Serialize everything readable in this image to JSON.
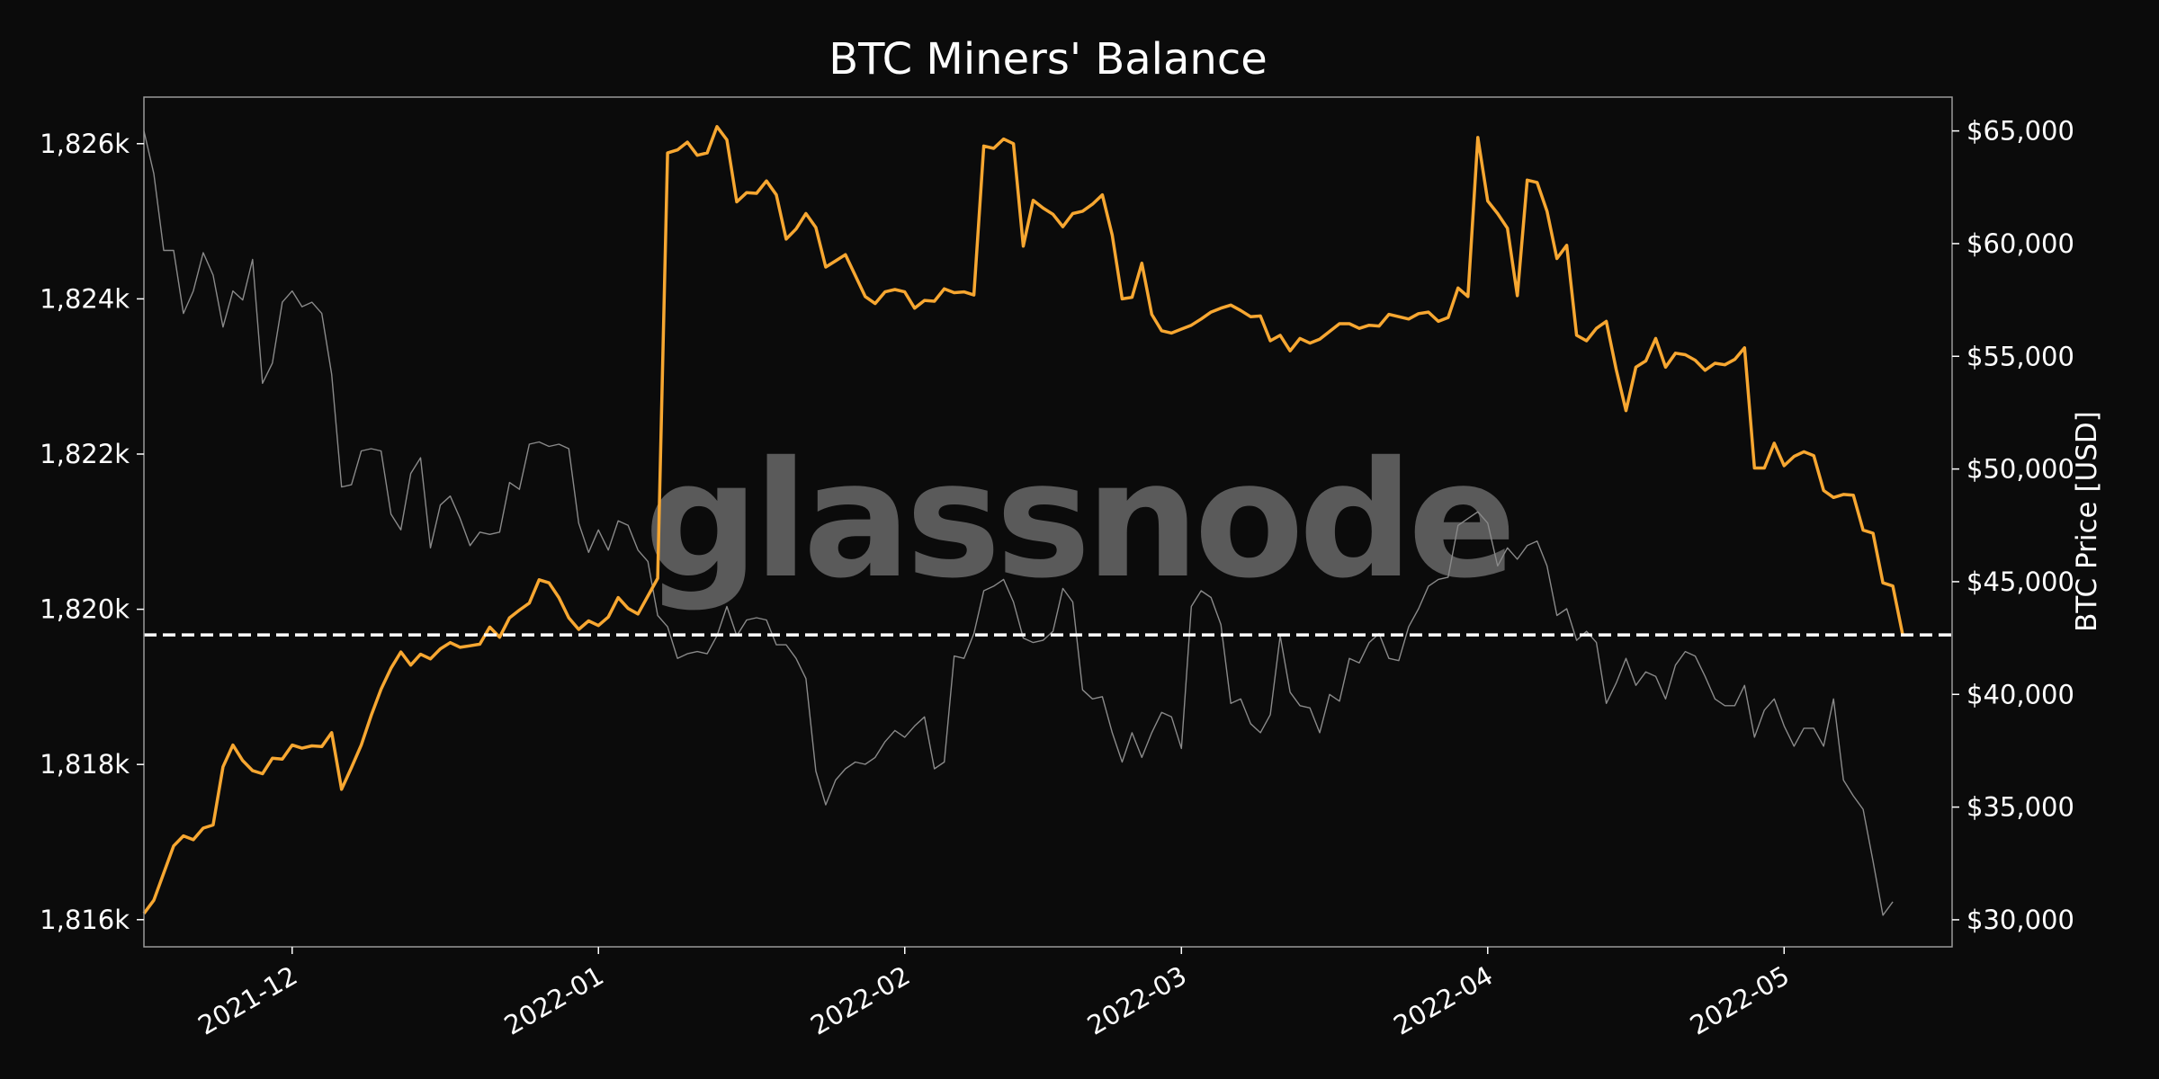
{
  "chart_data": {
    "type": "line",
    "title": "BTC Miners' Balance",
    "ylabel_left": "",
    "ylabel_right": "BTC Price [USD]",
    "watermark": "glassnode",
    "grid": false,
    "background": "#0b0b0b",
    "x_ticks": [
      "2021-12",
      "2022-01",
      "2022-02",
      "2022-03",
      "2022-04",
      "2022-05"
    ],
    "x_tick_dates": [
      "2021-12-01",
      "2022-01-01",
      "2022-02-01",
      "2022-03-01",
      "2022-04-01",
      "2022-05-01"
    ],
    "x_range": [
      "2021-11-16",
      "2022-05-18"
    ],
    "y_left_ticks": [
      "1,816k",
      "1,818k",
      "1,820k",
      "1,822k",
      "1,824k",
      "1,826k"
    ],
    "y_left_tick_values": [
      1816000,
      1818000,
      1820000,
      1822000,
      1824000,
      1826000
    ],
    "y_left_range": [
      1815650,
      1826600
    ],
    "y_right_ticks": [
      "$30,000",
      "$35,000",
      "$40,000",
      "$45,000",
      "$50,000",
      "$55,000",
      "$60,000",
      "$65,000"
    ],
    "y_right_tick_values": [
      30000,
      35000,
      40000,
      45000,
      50000,
      55000,
      60000,
      65000
    ],
    "y_right_range": [
      28800,
      66500
    ],
    "reference_line": {
      "axis": "left",
      "value": 1819670,
      "style": "dashed",
      "color": "#ffffff"
    },
    "series": [
      {
        "axis": "left",
        "color": "#f7a731",
        "start_date": "2021-11-16",
        "values": [
          1816080,
          1816250,
          1816600,
          1816950,
          1817080,
          1817030,
          1817180,
          1817220,
          1817970,
          1818250,
          1818050,
          1817920,
          1817880,
          1818080,
          1818070,
          1818250,
          1818210,
          1818240,
          1818230,
          1818410,
          1817680,
          1817960,
          1818250,
          1818630,
          1818970,
          1819240,
          1819450,
          1819280,
          1819420,
          1819360,
          1819490,
          1819570,
          1819510,
          1819530,
          1819550,
          1819770,
          1819640,
          1819890,
          1819990,
          1820080,
          1820380,
          1820340,
          1820150,
          1819890,
          1819740,
          1819850,
          1819790,
          1819900,
          1820150,
          1820010,
          1819940,
          1820170,
          1820400,
          1825880,
          1825920,
          1826020,
          1825850,
          1825880,
          1826220,
          1826050,
          1825250,
          1825370,
          1825360,
          1825520,
          1825340,
          1824770,
          1824900,
          1825100,
          1824920,
          1824410,
          1824490,
          1824570,
          1824300,
          1824030,
          1823940,
          1824090,
          1824120,
          1824090,
          1823880,
          1823980,
          1823970,
          1824130,
          1824080,
          1824090,
          1824050,
          1825970,
          1825940,
          1826060,
          1826000,
          1824680,
          1825270,
          1825170,
          1825090,
          1824930,
          1825100,
          1825130,
          1825220,
          1825340,
          1824820,
          1824000,
          1824020,
          1824460,
          1823800,
          1823590,
          1823560,
          1823610,
          1823660,
          1823740,
          1823830,
          1823880,
          1823920,
          1823850,
          1823770,
          1823780,
          1823460,
          1823530,
          1823330,
          1823490,
          1823430,
          1823480,
          1823580,
          1823680,
          1823680,
          1823620,
          1823660,
          1823650,
          1823800,
          1823770,
          1823740,
          1823810,
          1823830,
          1823710,
          1823760,
          1824140,
          1824030,
          1826080,
          1825260,
          1825100,
          1824910,
          1824040,
          1825530,
          1825500,
          1825130,
          1824520,
          1824690,
          1823530,
          1823460,
          1823620,
          1823710,
          1823090,
          1822560,
          1823120,
          1823200,
          1823490,
          1823120,
          1823300,
          1823280,
          1823210,
          1823080,
          1823170,
          1823150,
          1823220,
          1823370,
          1821820,
          1821820,
          1822140,
          1821850,
          1821970,
          1822030,
          1821980,
          1821530,
          1821440,
          1821480,
          1821470,
          1821020,
          1820980,
          1820340,
          1820300,
          1819670
        ]
      },
      {
        "axis": "right",
        "color": "#8a8a8a",
        "start_date": "2021-11-16",
        "values": [
          65000,
          63100,
          59700,
          59700,
          56900,
          57900,
          59600,
          58600,
          56300,
          57900,
          57500,
          59300,
          53800,
          54700,
          57400,
          57900,
          57200,
          57400,
          56900,
          54200,
          49200,
          49300,
          50800,
          50900,
          50800,
          48000,
          47300,
          49800,
          50500,
          46500,
          48400,
          48800,
          47800,
          46600,
          47200,
          47100,
          47200,
          49400,
          49100,
          51100,
          51200,
          51000,
          51100,
          50900,
          47600,
          46300,
          47300,
          46400,
          47700,
          47500,
          46400,
          45900,
          43500,
          43000,
          41600,
          41800,
          41900,
          41800,
          42600,
          43900,
          42600,
          43300,
          43400,
          43300,
          42200,
          42200,
          41600,
          40700,
          36600,
          35100,
          36200,
          36700,
          37000,
          36900,
          37200,
          37900,
          38400,
          38100,
          38600,
          39000,
          36700,
          37000,
          41700,
          41600,
          42700,
          44600,
          44800,
          45100,
          44100,
          42500,
          42300,
          42400,
          42800,
          44700,
          44100,
          40200,
          39800,
          39900,
          38300,
          37000,
          38300,
          37200,
          38300,
          39200,
          39000,
          37600,
          43900,
          44600,
          44300,
          43100,
          39600,
          39800,
          38700,
          38300,
          39100,
          42600,
          40100,
          39500,
          39400,
          38300,
          40000,
          39700,
          41600,
          41400,
          42300,
          42700,
          41600,
          41500,
          43000,
          43800,
          44800,
          45100,
          45200,
          47500,
          47800,
          48100,
          47600,
          45700,
          46500,
          46000,
          46600,
          46800,
          45700,
          43500,
          43800,
          42400,
          42800,
          42300,
          39600,
          40500,
          41600,
          40400,
          41000,
          40800,
          39800,
          41300,
          41900,
          41700,
          40800,
          39800,
          39500,
          39500,
          40400,
          38100,
          39300,
          39800,
          38600,
          37700,
          38500,
          38500,
          37700,
          39800,
          36200,
          35500,
          34900,
          32600,
          30200,
          30800
        ]
      }
    ]
  }
}
